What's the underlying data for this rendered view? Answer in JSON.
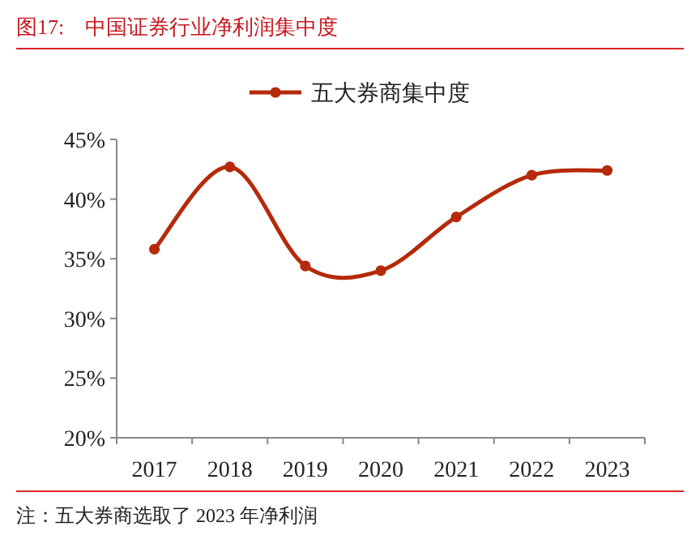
{
  "chart_data": {
    "type": "line",
    "title": "图17:　中国证券行业净利润集中度",
    "categories": [
      "2017",
      "2018",
      "2019",
      "2020",
      "2021",
      "2022",
      "2023"
    ],
    "series": [
      {
        "name": "五大券商集中度",
        "color": "#b52a0a",
        "values": [
          35.8,
          42.7,
          34.4,
          34.0,
          38.5,
          42.0,
          42.4
        ]
      }
    ],
    "ylim": [
      20,
      45
    ],
    "yticks": [
      {
        "value": 20,
        "label": "20%"
      },
      {
        "value": 25,
        "label": "25%"
      },
      {
        "value": 30,
        "label": "30%"
      },
      {
        "value": 35,
        "label": "35%"
      },
      {
        "value": 40,
        "label": "40%"
      },
      {
        "value": 45,
        "label": "45%"
      }
    ],
    "legend": "top",
    "marker": "circle",
    "line_style": "solid",
    "annotations": [
      "注：五大券商选取了 2023 年净利润"
    ]
  }
}
